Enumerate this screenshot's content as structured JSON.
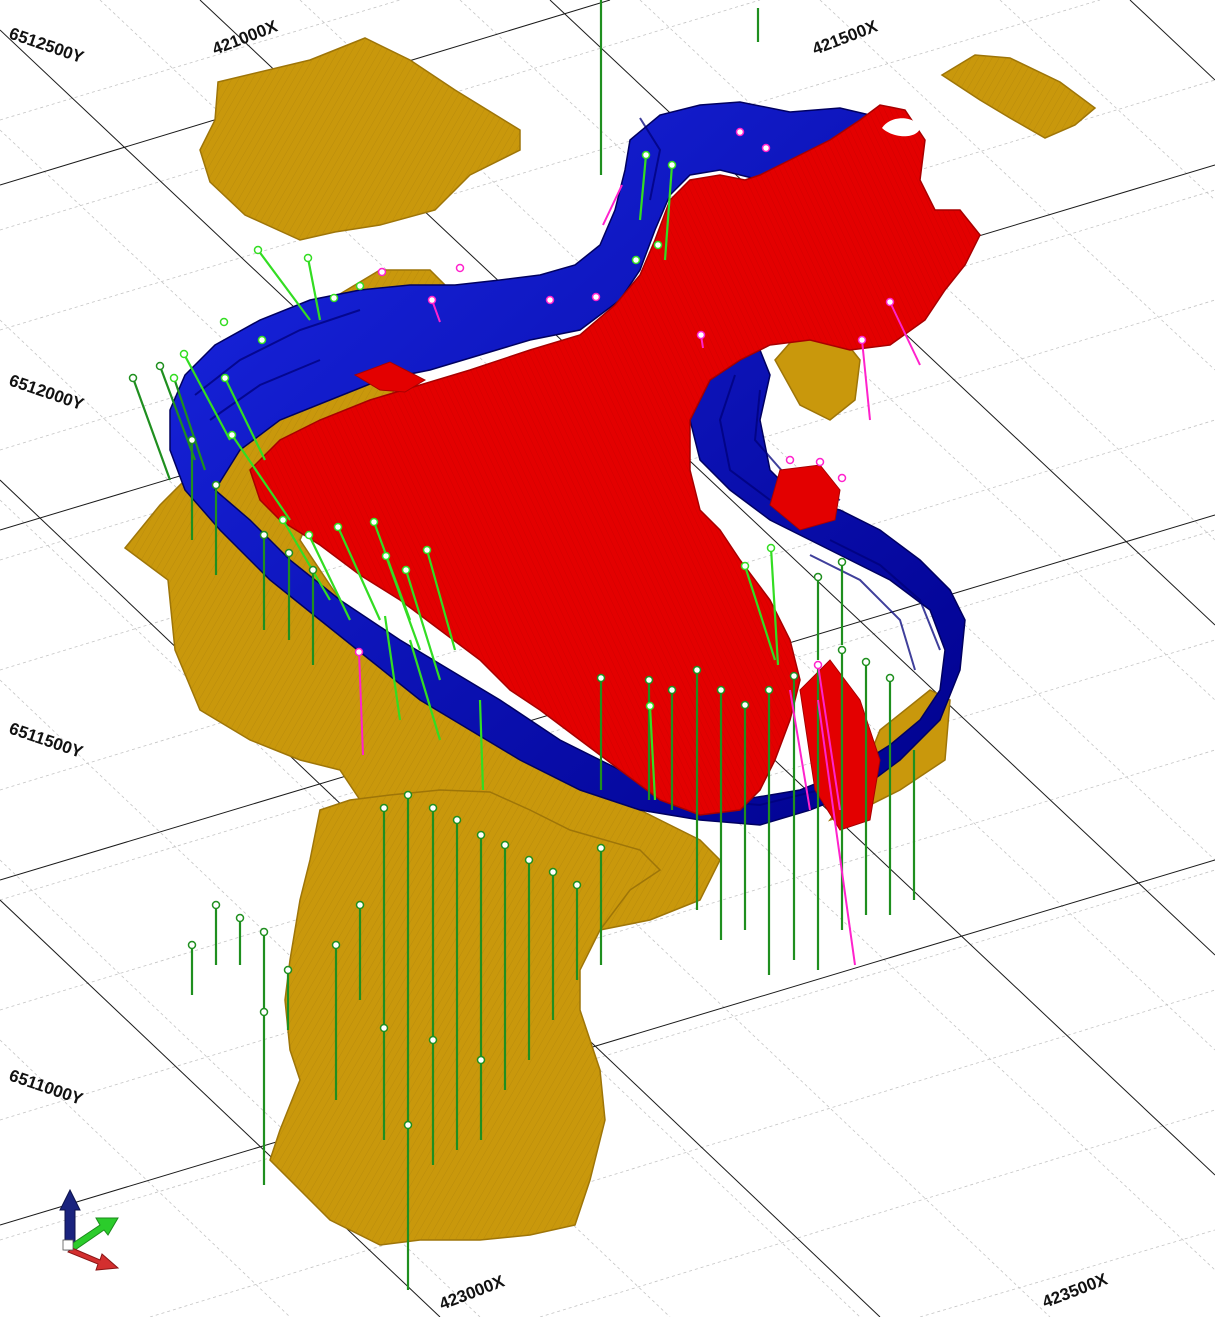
{
  "view": {
    "colors": {
      "background": "#ffffff",
      "grid_major": "#1a1a1a",
      "grid_minor": "#bdbdbd",
      "orebody": "#c9980c",
      "orebody_edge": "#9e7508",
      "pit": "#0a14c8",
      "pit_dark": "#00007a",
      "model_red": "#e30000",
      "model_red_edge": "#a80000",
      "drillhole_green": "#1f8f1f",
      "drillhole_lime": "#33dd22",
      "drillhole_magenta": "#ff22cc"
    },
    "grid_labels": {
      "x_top_1": "421000X",
      "x_top_2": "421500X",
      "x_bottom_1": "423000X",
      "x_bottom_2": "423500X",
      "y_1": "6512500Y",
      "y_2": "6512000Y",
      "y_3": "6511500Y",
      "y_4": "6511000Y"
    },
    "axis_triad": {
      "z_color": "#1a237e",
      "y_color": "#2bcc2b",
      "x_color": "#d32f2f",
      "icon": "xyz-axis-triad-icon"
    }
  }
}
